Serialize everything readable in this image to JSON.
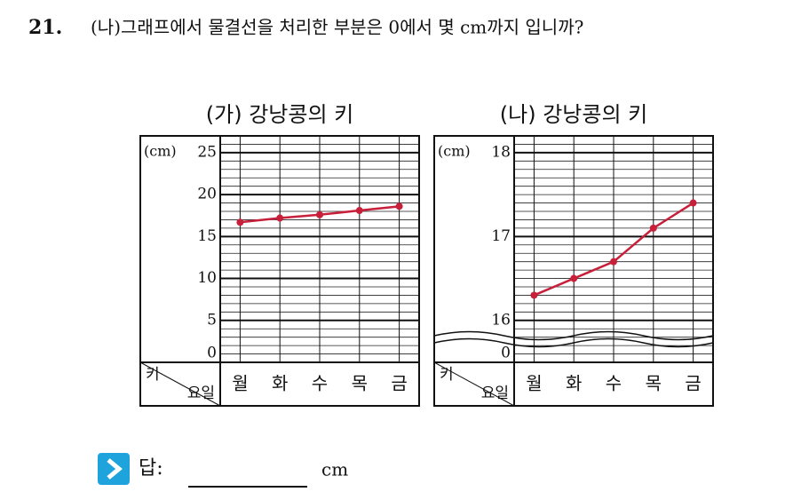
{
  "question": {
    "number": "21.",
    "text": "(나)그래프에서 물결선을 처리한 부분은 0에서 몇 cm까지 입니까?"
  },
  "chart_data": [
    {
      "type": "line",
      "title": "(가) 강낭콩의 키",
      "y_unit": "(cm)",
      "row_header": "키",
      "column_header": "요일",
      "categories": [
        "월",
        "화",
        "수",
        "목",
        "금"
      ],
      "values": [
        16.7,
        17.2,
        17.6,
        18.1,
        18.6
      ],
      "color": "#c8203a",
      "ylim": [
        0,
        27
      ],
      "yticks": [
        0,
        5,
        10,
        15,
        20,
        25
      ],
      "minor_step": 1,
      "axis_break": false
    },
    {
      "type": "line",
      "title": "(나) 강낭콩의 키",
      "y_unit": "(cm)",
      "row_header": "키",
      "column_header": "요일",
      "categories": [
        "월",
        "화",
        "수",
        "목",
        "금"
      ],
      "values": [
        16.3,
        16.5,
        16.7,
        17.1,
        17.4
      ],
      "color": "#c8203a",
      "ylim": [
        15.5,
        18.2
      ],
      "yticks": [
        0,
        16,
        17,
        18
      ],
      "minor_step": 0.1,
      "axis_break": true
    }
  ],
  "answer": {
    "label": "답:",
    "unit": "cm"
  }
}
